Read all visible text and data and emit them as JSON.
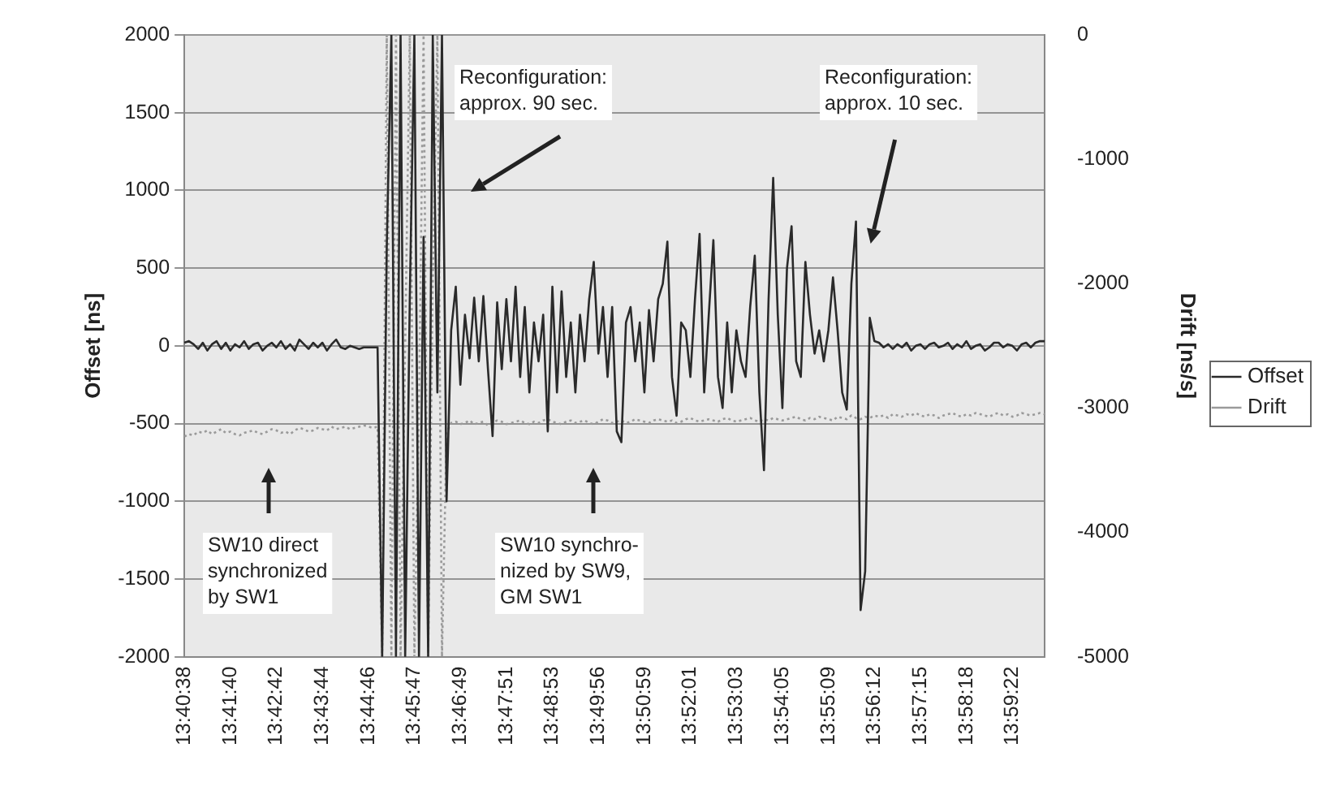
{
  "chart_data": {
    "type": "line",
    "ylabel": "Offset [ns]",
    "y2label": "Drift [ns/s]",
    "categories": [
      "13:40:38",
      null,
      null,
      null,
      null,
      null,
      null,
      null,
      null,
      null,
      "13:41:40",
      null,
      null,
      null,
      null,
      null,
      null,
      null,
      null,
      null,
      "13:42:42",
      null,
      null,
      null,
      null,
      null,
      null,
      null,
      null,
      null,
      "13:43:44",
      null,
      null,
      null,
      null,
      null,
      null,
      null,
      null,
      null,
      "13:44:46",
      null,
      null,
      null,
      null,
      null,
      null,
      null,
      null,
      null,
      "13:45:47",
      null,
      null,
      null,
      null,
      null,
      null,
      null,
      null,
      null,
      "13:46:49",
      null,
      null,
      null,
      null,
      null,
      null,
      null,
      null,
      null,
      "13:47:51",
      null,
      null,
      null,
      null,
      null,
      null,
      null,
      null,
      null,
      "13:48:53",
      null,
      null,
      null,
      null,
      null,
      null,
      null,
      null,
      null,
      "13:49:56",
      null,
      null,
      null,
      null,
      null,
      null,
      null,
      null,
      null,
      "13:50:59",
      null,
      null,
      null,
      null,
      null,
      null,
      null,
      null,
      null,
      "13:52:01",
      null,
      null,
      null,
      null,
      null,
      null,
      null,
      null,
      null,
      "13:53:03",
      null,
      null,
      null,
      null,
      null,
      null,
      null,
      null,
      null,
      "13:54:05",
      null,
      null,
      null,
      null,
      null,
      null,
      null,
      null,
      null,
      "13:55:09",
      null,
      null,
      null,
      null,
      null,
      null,
      null,
      null,
      null,
      "13:56:12",
      null,
      null,
      null,
      null,
      null,
      null,
      null,
      null,
      null,
      "13:57:15",
      null,
      null,
      null,
      null,
      null,
      null,
      null,
      null,
      null,
      "13:58:18",
      null,
      null,
      null,
      null,
      null,
      null,
      null,
      null,
      null,
      "13:59:22",
      null,
      null,
      null,
      null,
      null,
      null,
      null
    ],
    "series": [
      {
        "name": "Offset",
        "color": "#2a2a2a",
        "line_style": "solid",
        "values": [
          20,
          30,
          10,
          -20,
          20,
          -30,
          10,
          30,
          -20,
          20,
          -30,
          10,
          -10,
          30,
          -20,
          10,
          20,
          -30,
          0,
          20,
          -10,
          30,
          -20,
          10,
          -30,
          40,
          10,
          -20,
          20,
          -10,
          20,
          -30,
          10,
          40,
          -10,
          -20,
          0,
          -10,
          -20,
          -10,
          -10,
          -10,
          -10,
          -2000,
          640,
          2000,
          -2000,
          2000,
          -2000,
          300,
          2000,
          -2000,
          700,
          -2000,
          2000,
          -300,
          2000,
          -1000,
          100,
          380,
          -250,
          200,
          -80,
          310,
          -100,
          320,
          -150,
          -580,
          280,
          -150,
          300,
          -100,
          380,
          -200,
          250,
          -300,
          150,
          -100,
          200,
          -550,
          380,
          -300,
          350,
          -200,
          150,
          -300,
          200,
          -100,
          300,
          540,
          -50,
          250,
          -200,
          250,
          -550,
          -620,
          150,
          250,
          -100,
          150,
          -300,
          230,
          -100,
          300,
          400,
          670,
          -200,
          -450,
          150,
          100,
          -200,
          300,
          720,
          -300,
          200,
          680,
          -200,
          -400,
          150,
          -300,
          100,
          -100,
          -200,
          250,
          580,
          -300,
          -800,
          300,
          1080,
          200,
          -400,
          500,
          770,
          -100,
          -200,
          540,
          200,
          -50,
          100,
          -100,
          100,
          440,
          100,
          -300,
          -410,
          400,
          800,
          -1700,
          -1450,
          180,
          30,
          20,
          -10,
          10,
          -20,
          10,
          -10,
          20,
          -30,
          0,
          10,
          -20,
          10,
          20,
          -10,
          0,
          20,
          -20,
          10,
          -10,
          30,
          -20,
          0,
          10,
          -30,
          -10,
          20,
          20,
          -10,
          10,
          0,
          -30,
          10,
          20,
          -10,
          20,
          30,
          30
        ]
      },
      {
        "name": "Drift",
        "color": "#9a9a9a",
        "line_style": "dotted",
        "axis": "y2",
        "values": [
          -3230,
          -3210,
          -3220,
          -3190,
          -3200,
          -3180,
          -3210,
          -3190,
          -3170,
          -3200,
          -3190,
          -3210,
          -3220,
          -3200,
          -3190,
          -3180,
          -3200,
          -3210,
          -3190,
          -3170,
          -3180,
          -3200,
          -3190,
          -3210,
          -3180,
          -3160,
          -3170,
          -3190,
          -3180,
          -3160,
          -3170,
          -3180,
          -3150,
          -3170,
          -3160,
          -3150,
          -3170,
          -3160,
          -3150,
          -3140,
          -3150,
          -3160,
          -3150,
          -5000,
          0,
          -5000,
          0,
          -5000,
          -2500,
          0,
          -5000,
          -3000,
          0,
          -5000,
          -2000,
          0,
          -5000,
          -3200,
          -3120,
          -3110,
          -3130,
          -3120,
          -3100,
          -3130,
          -3120,
          -3110,
          -3140,
          -3120,
          -3100,
          -3110,
          -3130,
          -3120,
          -3110,
          -3100,
          -3120,
          -3130,
          -3110,
          -3120,
          -3100,
          -3090,
          -3110,
          -3120,
          -3130,
          -3110,
          -3100,
          -3120,
          -3110,
          -3100,
          -3120,
          -3130,
          -3110,
          -3090,
          -3100,
          -3120,
          -3110,
          -3100,
          -3120,
          -3110,
          -3090,
          -3100,
          -3110,
          -3120,
          -3100,
          -3090,
          -3100,
          -3110,
          -3100,
          -3120,
          -3110,
          -3090,
          -3080,
          -3100,
          -3110,
          -3100,
          -3090,
          -3100,
          -3110,
          -3090,
          -3080,
          -3100,
          -3110,
          -3100,
          -3090,
          -3080,
          -3100,
          -3110,
          -3090,
          -3100,
          -3080,
          -3090,
          -3100,
          -3090,
          -3080,
          -3070,
          -3090,
          -3100,
          -3080,
          -3090,
          -3070,
          -3080,
          -3090,
          -3100,
          -3070,
          -3080,
          -3090,
          -3060,
          -3080,
          -3090,
          -3070,
          -3080,
          -3060,
          -3070,
          -3060,
          -3080,
          -3050,
          -3060,
          -3070,
          -3050,
          -3060,
          -3040,
          -3060,
          -3070,
          -3050,
          -3060,
          -3080,
          -3060,
          -3050,
          -3040,
          -3060,
          -3070,
          -3050,
          -3060,
          -3040,
          -3050,
          -3060,
          -3070,
          -3050,
          -3040,
          -3060,
          -3050,
          -3070,
          -3060,
          -3040,
          -3050,
          -3060,
          -3050,
          -3040,
          -3050
        ]
      }
    ],
    "ylim": [
      -2000,
      2000
    ],
    "yticks": [
      -2000,
      -1500,
      -1000,
      -500,
      0,
      500,
      1000,
      1500,
      2000
    ],
    "y2lim": [
      -5000,
      0
    ],
    "y2ticks": [
      -5000,
      -4000,
      -3000,
      -2000,
      -1000,
      0
    ],
    "grid": "y",
    "legend": "right",
    "marker": "none",
    "annotations": [
      "Reconfiguration:\napprox. 90 sec.",
      "Reconfiguration:\napprox. 10 sec.",
      "SW10 direct\nsynchronized\nby SW1",
      "SW10 synchro-\nnized by SW9,\nGM SW1"
    ]
  }
}
